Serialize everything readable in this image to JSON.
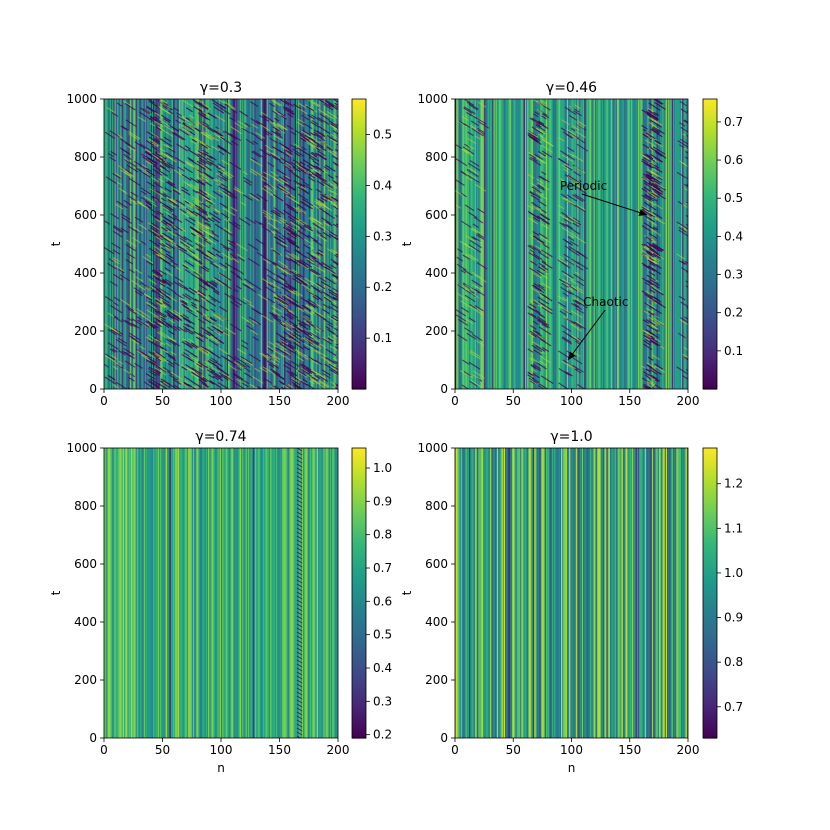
{
  "chart_data": [
    {
      "type": "heatmap",
      "title": "γ=0.3",
      "xlabel": "",
      "ylabel": "t",
      "xlim": [
        0,
        200
      ],
      "ylim": [
        0,
        1000
      ],
      "xticks": [
        "0",
        "50",
        "100",
        "150",
        "200"
      ],
      "yticks": [
        "0",
        "200",
        "400",
        "600",
        "800",
        "1000"
      ],
      "colorbar": {
        "range": [
          0.0,
          0.57
        ],
        "ticks": [
          "0.1",
          "0.2",
          "0.3",
          "0.4",
          "0.5"
        ],
        "colormap": "viridis"
      },
      "annotations": []
    },
    {
      "type": "heatmap",
      "title": "γ=0.46",
      "xlabel": "",
      "ylabel": "t",
      "xlim": [
        0,
        200
      ],
      "ylim": [
        0,
        1000
      ],
      "xticks": [
        "0",
        "50",
        "100",
        "150",
        "200"
      ],
      "yticks": [
        "0",
        "200",
        "400",
        "600",
        "800",
        "1000"
      ],
      "colorbar": {
        "range": [
          0.0,
          0.76
        ],
        "ticks": [
          "0.1",
          "0.2",
          "0.3",
          "0.4",
          "0.5",
          "0.6",
          "0.7"
        ],
        "colormap": "viridis"
      },
      "annotations": [
        {
          "text": "Periodic",
          "text_at": [
            90,
            700
          ],
          "arrow_to": [
            165,
            600
          ]
        },
        {
          "text": "Chaotic",
          "text_at": [
            110,
            300
          ],
          "arrow_to": [
            97,
            100
          ]
        }
      ]
    },
    {
      "type": "heatmap",
      "title": "γ=0.74",
      "xlabel": "n",
      "ylabel": "t",
      "xlim": [
        0,
        200
      ],
      "ylim": [
        0,
        1000
      ],
      "xticks": [
        "0",
        "50",
        "100",
        "150",
        "200"
      ],
      "yticks": [
        "0",
        "200",
        "400",
        "600",
        "800",
        "1000"
      ],
      "colorbar": {
        "range": [
          0.19,
          1.06
        ],
        "ticks": [
          "0.2",
          "0.3",
          "0.4",
          "0.5",
          "0.6",
          "0.7",
          "0.8",
          "0.9",
          "1.0"
        ],
        "colormap": "viridis"
      },
      "annotations": []
    },
    {
      "type": "heatmap",
      "title": "γ=1.0",
      "xlabel": "n",
      "ylabel": "t",
      "xlim": [
        0,
        200
      ],
      "ylim": [
        0,
        1000
      ],
      "xticks": [
        "0",
        "50",
        "100",
        "150",
        "200"
      ],
      "yticks": [
        "0",
        "200",
        "400",
        "600",
        "800",
        "1000"
      ],
      "colorbar": {
        "range": [
          0.63,
          1.28
        ],
        "ticks": [
          "0.7",
          "0.8",
          "0.9",
          "1.0",
          "1.1",
          "1.2"
        ],
        "colormap": "viridis"
      },
      "annotations": []
    }
  ]
}
